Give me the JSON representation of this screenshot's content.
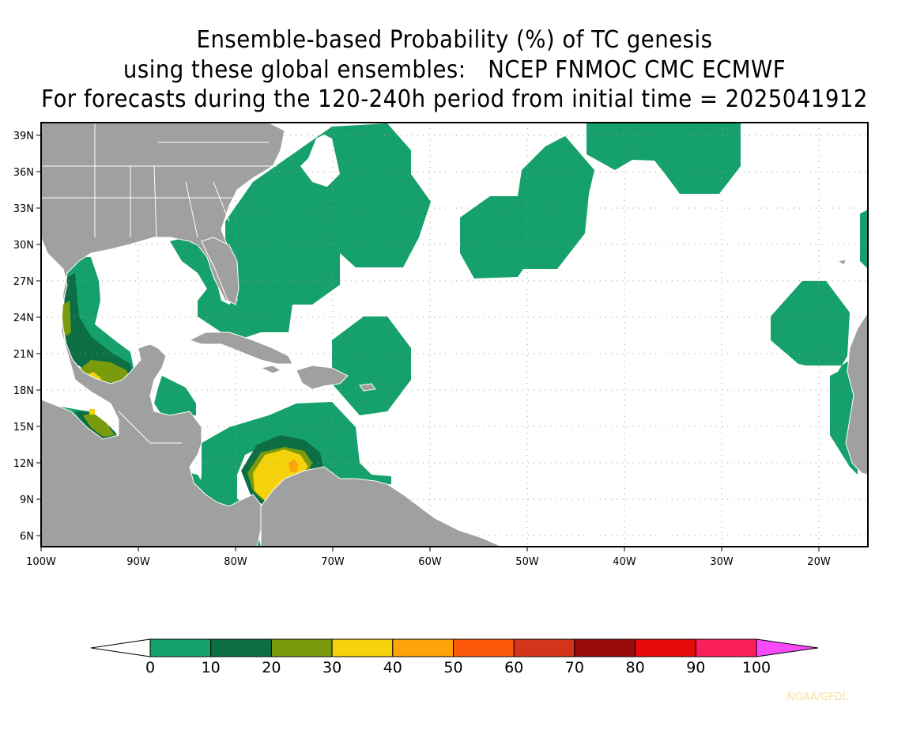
{
  "title": {
    "line1": "Ensemble-based Probability (%) of TC genesis",
    "line2": "using these global ensembles:   NCEP FNMOC CMC ECMWF",
    "line3": "For forecasts during the 120-240h period from initial time = 2025041912"
  },
  "axes": {
    "lat_labels": [
      "39N",
      "36N",
      "33N",
      "30N",
      "27N",
      "24N",
      "21N",
      "18N",
      "15N",
      "12N",
      "9N",
      "6N"
    ],
    "lon_labels": [
      "100W",
      "90W",
      "80W",
      "70W",
      "60W",
      "50W",
      "40W",
      "30W",
      "20W"
    ]
  },
  "colorbar": {
    "labels": [
      "0",
      "10",
      "20",
      "30",
      "40",
      "50",
      "60",
      "70",
      "80",
      "90",
      "100"
    ],
    "colors": [
      "#ffffff",
      "#16a06c",
      "#0d6e44",
      "#7a9c0c",
      "#f4d30c",
      "#fca40a",
      "#fc5a0a",
      "#d4341a",
      "#9a0a0a",
      "#e60a0a",
      "#fa1e5a",
      "#f94af9"
    ]
  },
  "map_colors": {
    "land": "#a0a0a0",
    "ocean": "#ffffff",
    "border": "#ffffff"
  },
  "credit": "NOAA/GFDL"
}
